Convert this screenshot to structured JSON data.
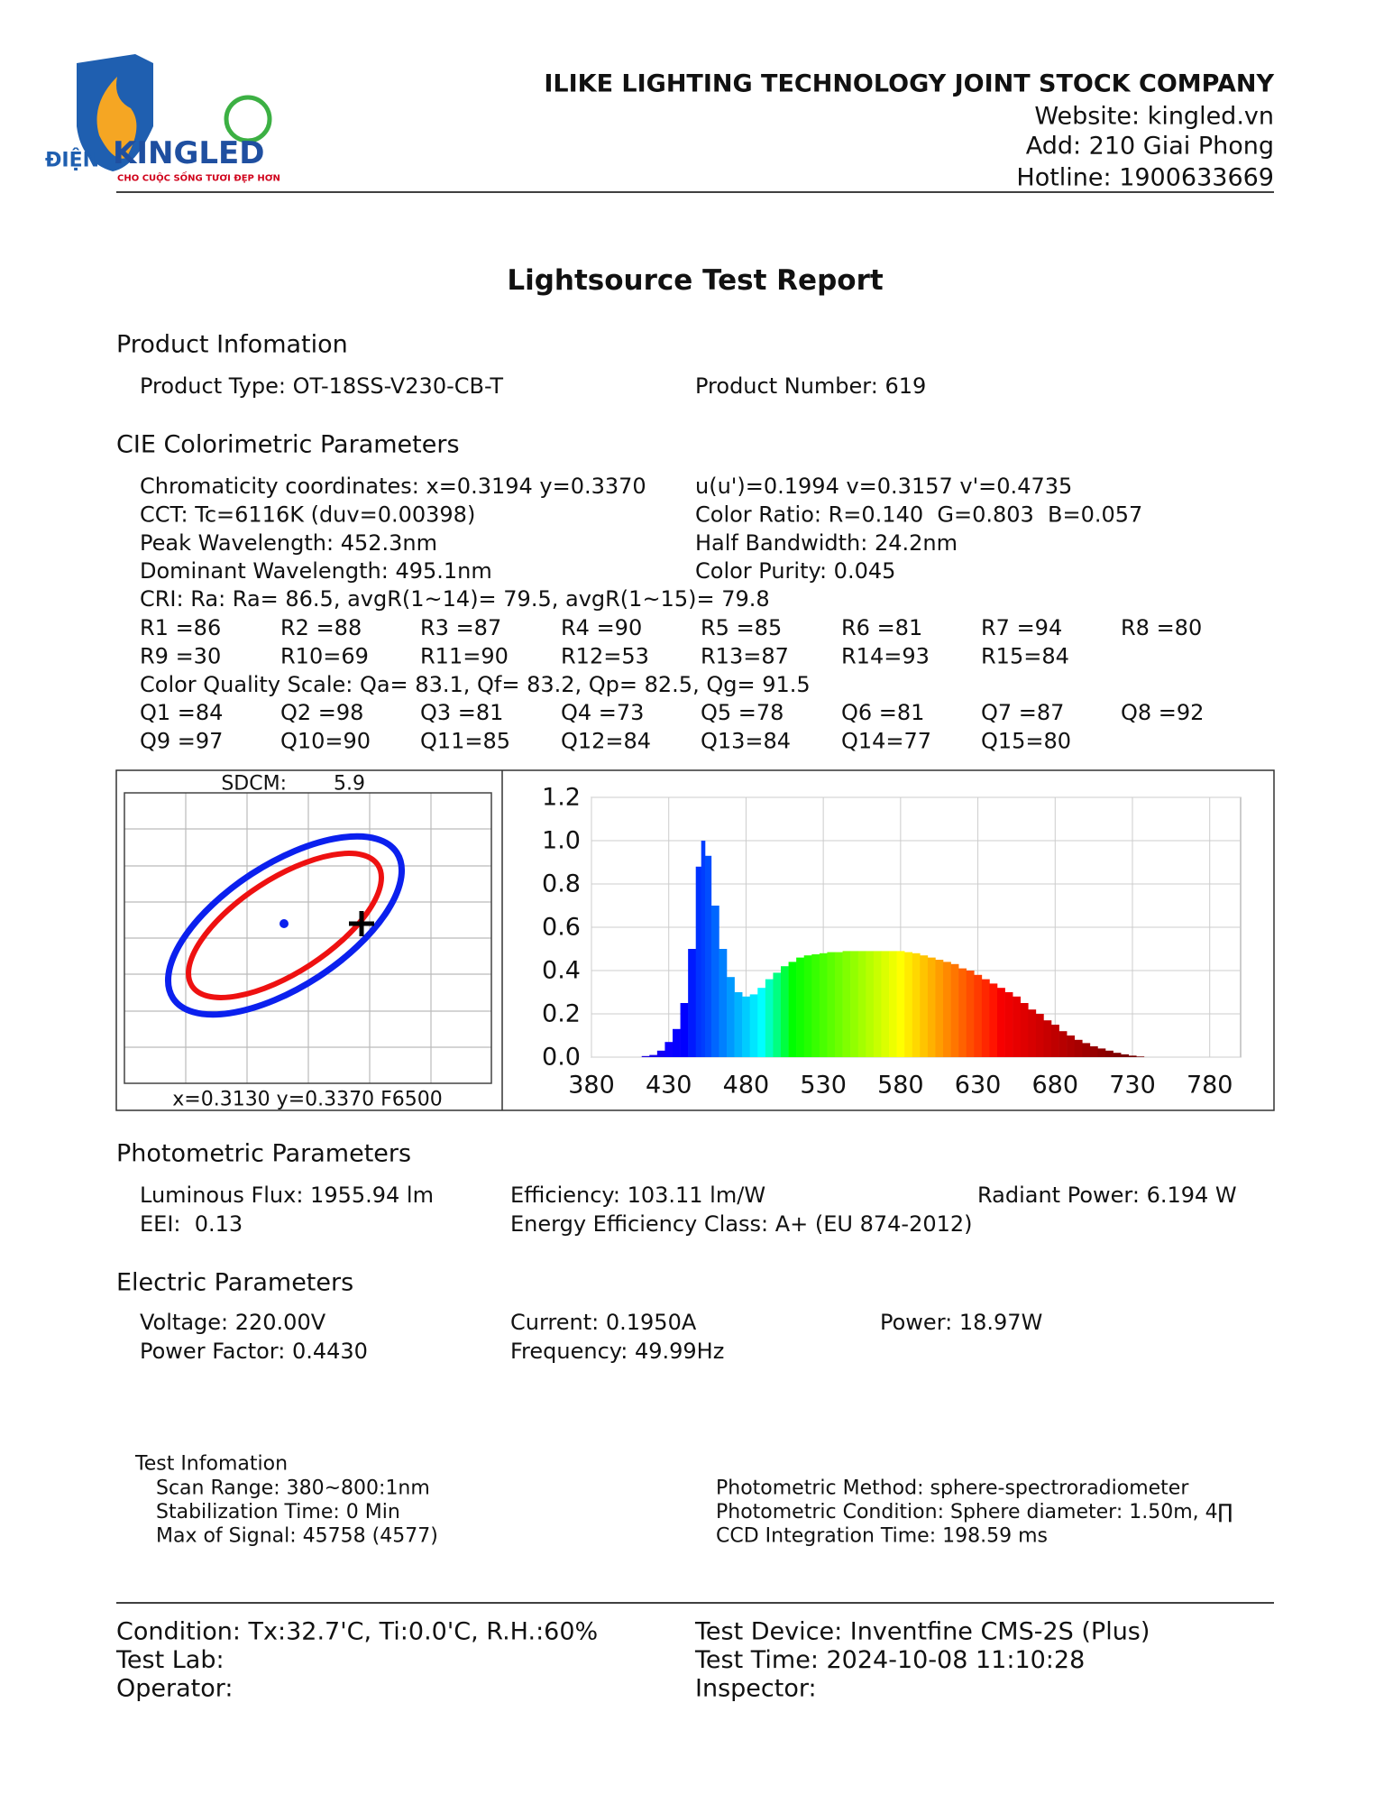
{
  "header": {
    "logo": {
      "prefix": "ĐIỆN",
      "brand": "KINGLED",
      "slogan": "CHO CUỘC SỐNG TƯƠI ĐẸP HƠN"
    },
    "company": "ILIKE LIGHTING TECHNOLOGY JOINT STOCK COMPANY",
    "website": "Website: kingled.vn",
    "address": "Add: 210 Giai Phong",
    "hotline": "Hotline: 1900633669"
  },
  "title": "Lightsource Test Report",
  "product": {
    "heading": "Product Infomation",
    "type": "Product Type: OT-18SS-V230-CB-T",
    "number": "Product Number: 619"
  },
  "cie": {
    "heading": "CIE Colorimetric Parameters",
    "rows": [
      [
        "Chromaticity coordinates: x=0.3194 y=0.3370",
        "u(u')=0.1994 v=0.3157 v'=0.4735"
      ],
      [
        "CCT: Tc=6116K (duv=0.00398)",
        "Color Ratio: R=0.140  G=0.803  B=0.057"
      ],
      [
        "Peak Wavelength: 452.3nm",
        "Half Bandwidth: 24.2nm"
      ],
      [
        "Dominant Wavelength: 495.1nm",
        "Color Purity: 0.045"
      ]
    ],
    "cri": "CRI: Ra: Ra= 86.5, avgR(1~14)= 79.5, avgR(1~15)= 79.8",
    "r_grid": [
      [
        "R1 =86",
        "R2 =88",
        "R3 =87",
        "R4 =90",
        "R5 =85",
        "R6 =81",
        "R7 =94",
        "R8 =80"
      ],
      [
        "R9 =30",
        "R10=69",
        "R11=90",
        "R12=53",
        "R13=87",
        "R14=93",
        "R15=84"
      ]
    ],
    "cqs": "Color Quality Scale: Qa= 83.1, Qf= 83.2, Qp= 82.5, Qg= 91.5",
    "q_grid": [
      [
        "Q1 =84",
        "Q2 =98",
        "Q3 =81",
        "Q4 =73",
        "Q5 =78",
        "Q6 =81",
        "Q7 =87",
        "Q8 =92"
      ],
      [
        "Q9 =97",
        "Q10=90",
        "Q11=85",
        "Q12=84",
        "Q13=84",
        "Q14=77",
        "Q15=80"
      ]
    ]
  },
  "sdcm": {
    "label": "SDCM:",
    "value": "5.9",
    "reference": "x=0.3130 y=0.3370 F6500"
  },
  "chart_data": {
    "type": "area",
    "x": [
      380,
      390,
      400,
      410,
      415,
      420,
      425,
      430,
      435,
      440,
      445,
      450,
      452,
      455,
      460,
      465,
      470,
      475,
      480,
      485,
      490,
      495,
      500,
      505,
      510,
      515,
      520,
      525,
      530,
      535,
      540,
      545,
      550,
      555,
      560,
      565,
      570,
      575,
      580,
      585,
      590,
      595,
      600,
      605,
      610,
      615,
      620,
      625,
      630,
      635,
      640,
      645,
      650,
      655,
      660,
      665,
      670,
      675,
      680,
      685,
      690,
      695,
      700,
      705,
      710,
      715,
      720,
      725,
      730,
      735,
      740
    ],
    "values": [
      0,
      0,
      0,
      0,
      0.005,
      0.01,
      0.03,
      0.07,
      0.13,
      0.25,
      0.5,
      0.88,
      1.0,
      0.93,
      0.7,
      0.5,
      0.37,
      0.3,
      0.28,
      0.29,
      0.32,
      0.36,
      0.39,
      0.42,
      0.44,
      0.46,
      0.47,
      0.475,
      0.48,
      0.485,
      0.485,
      0.49,
      0.49,
      0.49,
      0.49,
      0.49,
      0.49,
      0.49,
      0.49,
      0.485,
      0.48,
      0.47,
      0.46,
      0.45,
      0.44,
      0.43,
      0.41,
      0.4,
      0.38,
      0.36,
      0.34,
      0.32,
      0.3,
      0.28,
      0.25,
      0.22,
      0.2,
      0.17,
      0.15,
      0.12,
      0.1,
      0.08,
      0.065,
      0.05,
      0.04,
      0.03,
      0.02,
      0.013,
      0.007,
      0.003,
      0
    ],
    "xlim": [
      380,
      800
    ],
    "xticks": [
      380,
      430,
      480,
      530,
      580,
      630,
      680,
      730,
      780
    ],
    "ylim": [
      0,
      1.2
    ],
    "yticks": [
      {
        "value": 0,
        "label": "0.0"
      },
      0.2,
      0.4,
      0.6,
      0.8,
      {
        "value": 1,
        "label": "1.0"
      },
      1.2
    ],
    "grid": true
  },
  "photometric": {
    "heading": "Photometric Parameters",
    "rows": [
      [
        "Luminous Flux: 1955.94 lm",
        "Efficiency: 103.11 lm/W",
        "Radiant Power: 6.194 W"
      ],
      [
        "EEI:  0.13",
        "Energy Efficiency Class: A+ (EU 874-2012)"
      ]
    ]
  },
  "electric": {
    "heading": "Electric Parameters",
    "rows": [
      [
        "Voltage: 220.00V",
        "Current: 0.1950A",
        "Power: 18.97W"
      ],
      [
        "Power Factor: 0.4430",
        "Frequency: 49.99Hz"
      ]
    ]
  },
  "test_info": {
    "heading": "Test Infomation",
    "left": [
      "Scan Range: 380~800:1nm",
      "Stabilization Time: 0 Min",
      "Max of Signal: 45758 (4577)"
    ],
    "right": [
      "Photometric Method: sphere-spectroradiometer",
      "Photometric Condition: Sphere diameter: 1.50m, 4∏",
      "CCD Integration Time: 198.59 ms"
    ]
  },
  "footer": {
    "rows": [
      [
        "Condition: Tx:32.7'C, Ti:0.0'C, R.H.:60%",
        "Test Device: Inventfine CMS-2S (Plus)"
      ],
      [
        "Test Lab:",
        "Test Time: 2024-10-08 11:10:28"
      ],
      [
        "Operator:",
        "Inspector:"
      ]
    ]
  }
}
